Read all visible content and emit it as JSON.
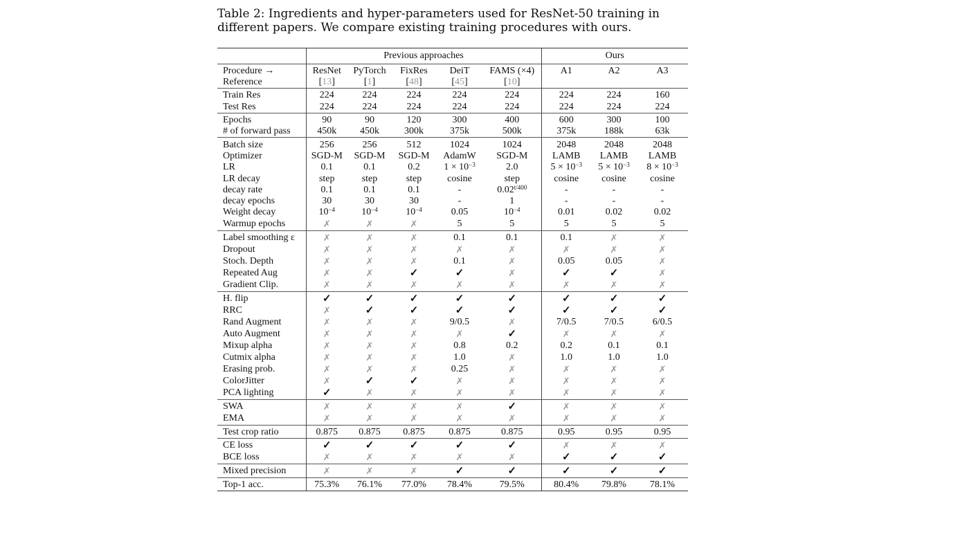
{
  "caption": "Table 2: Ingredients and hyper-parameters used for ResNet-50 training in different papers. We compare existing training procedures with ours.",
  "groups": {
    "previous": "Previous approaches",
    "ours": "Ours"
  },
  "columns": [
    "ResNet",
    "PyTorch",
    "FixRes",
    "DeiT",
    "FAMS (×4)",
    "A1",
    "A2",
    "A3"
  ],
  "header_labels": {
    "procedure": "Procedure →",
    "reference": "Reference"
  },
  "references": [
    "13",
    "1",
    "48",
    "45",
    "10"
  ],
  "sections": [
    [
      {
        "label": "Train Res",
        "values": [
          "224",
          "224",
          "224",
          "224",
          "224",
          "224",
          "224",
          "160"
        ]
      },
      {
        "label": "Test Res",
        "values": [
          "224",
          "224",
          "224",
          "224",
          "224",
          "224",
          "224",
          "224"
        ]
      }
    ],
    [
      {
        "label": "Epochs",
        "values": [
          "90",
          "90",
          "120",
          "300",
          "400",
          "600",
          "300",
          "100"
        ]
      },
      {
        "label": "# of forward pass",
        "values": [
          "450k",
          "450k",
          "300k",
          "375k",
          "500k",
          "375k",
          "188k",
          "63k"
        ]
      }
    ],
    [
      {
        "label": "Batch size",
        "values": [
          "256",
          "256",
          "512",
          "1024",
          "1024",
          "2048",
          "2048",
          "2048"
        ]
      },
      {
        "label": "Optimizer",
        "values": [
          "SGD-M",
          "SGD-M",
          "SGD-M",
          "AdamW",
          "SGD-M",
          "LAMB",
          "LAMB",
          "LAMB"
        ]
      },
      {
        "label": "LR",
        "values": [
          "0.1",
          "0.1",
          "0.2",
          "1 × 10^−3",
          "2.0",
          "5 × 10^−3",
          "5 × 10^−3",
          "8 × 10^−3"
        ]
      },
      {
        "label": "LR decay",
        "values": [
          "step",
          "step",
          "step",
          "cosine",
          "step",
          "cosine",
          "cosine",
          "cosine"
        ]
      },
      {
        "label": "decay rate",
        "values": [
          "0.1",
          "0.1",
          "0.1",
          "-",
          "0.02^t/400",
          "-",
          "-",
          "-"
        ]
      },
      {
        "label": "decay epochs",
        "values": [
          "30",
          "30",
          "30",
          "-",
          "1",
          "-",
          "-",
          "-"
        ]
      },
      {
        "label": "Weight decay",
        "values": [
          "10^−4",
          "10^−4",
          "10^−4",
          "0.05",
          "10^−4",
          "0.01",
          "0.02",
          "0.02"
        ]
      },
      {
        "label": "Warmup epochs",
        "values": [
          "✗",
          "✗",
          "✗",
          "5",
          "5",
          "5",
          "5",
          "5"
        ]
      }
    ],
    [
      {
        "label": "Label smoothing ε",
        "values": [
          "✗",
          "✗",
          "✗",
          "0.1",
          "0.1",
          "0.1",
          "✗",
          "✗"
        ]
      },
      {
        "label": "Dropout",
        "values": [
          "✗",
          "✗",
          "✗",
          "✗",
          "✗",
          "✗",
          "✗",
          "✗"
        ]
      },
      {
        "label": "Stoch. Depth",
        "values": [
          "✗",
          "✗",
          "✗",
          "0.1",
          "✗",
          "0.05",
          "0.05",
          "✗"
        ]
      },
      {
        "label": "Repeated Aug",
        "values": [
          "✗",
          "✗",
          "✓",
          "✓",
          "✗",
          "✓",
          "✓",
          "✗"
        ]
      },
      {
        "label": "Gradient Clip.",
        "values": [
          "✗",
          "✗",
          "✗",
          "✗",
          "✗",
          "✗",
          "✗",
          "✗"
        ]
      }
    ],
    [
      {
        "label": "H. flip",
        "values": [
          "✓",
          "✓",
          "✓",
          "✓",
          "✓",
          "✓",
          "✓",
          "✓"
        ]
      },
      {
        "label": "RRC",
        "values": [
          "✗",
          "✓",
          "✓",
          "✓",
          "✓",
          "✓",
          "✓",
          "✓"
        ]
      },
      {
        "label": "Rand Augment",
        "values": [
          "✗",
          "✗",
          "✗",
          "9/0.5",
          "✗",
          "7/0.5",
          "7/0.5",
          "6/0.5"
        ]
      },
      {
        "label": "Auto Augment",
        "values": [
          "✗",
          "✗",
          "✗",
          "✗",
          "✓",
          "✗",
          "✗",
          "✗"
        ]
      },
      {
        "label": "Mixup alpha",
        "values": [
          "✗",
          "✗",
          "✗",
          "0.8",
          "0.2",
          "0.2",
          "0.1",
          "0.1"
        ]
      },
      {
        "label": "Cutmix alpha",
        "values": [
          "✗",
          "✗",
          "✗",
          "1.0",
          "✗",
          "1.0",
          "1.0",
          "1.0"
        ]
      },
      {
        "label": "Erasing prob.",
        "values": [
          "✗",
          "✗",
          "✗",
          "0.25",
          "✗",
          "✗",
          "✗",
          "✗"
        ]
      },
      {
        "label": "ColorJitter",
        "values": [
          "✗",
          "✓",
          "✓",
          "✗",
          "✗",
          "✗",
          "✗",
          "✗"
        ]
      },
      {
        "label": "PCA lighting",
        "values": [
          "✓",
          "✗",
          "✗",
          "✗",
          "✗",
          "✗",
          "✗",
          "✗"
        ]
      }
    ],
    [
      {
        "label": "SWA",
        "values": [
          "✗",
          "✗",
          "✗",
          "✗",
          "✓",
          "✗",
          "✗",
          "✗"
        ]
      },
      {
        "label": "EMA",
        "values": [
          "✗",
          "✗",
          "✗",
          "✗",
          "✗",
          "✗",
          "✗",
          "✗"
        ]
      }
    ],
    [
      {
        "label": "Test crop ratio",
        "values": [
          "0.875",
          "0.875",
          "0.875",
          "0.875",
          "0.875",
          "0.95",
          "0.95",
          "0.95"
        ]
      }
    ],
    [
      {
        "label": "CE loss",
        "values": [
          "✓",
          "✓",
          "✓",
          "✓",
          "✓",
          "✗",
          "✗",
          "✗"
        ]
      },
      {
        "label": "BCE loss",
        "values": [
          "✗",
          "✗",
          "✗",
          "✗",
          "✗",
          "✓",
          "✓",
          "✓"
        ]
      }
    ],
    [
      {
        "label": "Mixed precision",
        "values": [
          "✗",
          "✗",
          "✗",
          "✓",
          "✓",
          "✓",
          "✓",
          "✓"
        ]
      }
    ],
    [
      {
        "label": "Top-1 acc.",
        "values": [
          "75.3%",
          "76.1%",
          "77.0%",
          "78.4%",
          "79.5%",
          "80.4%",
          "79.8%",
          "78.1%"
        ]
      }
    ]
  ]
}
